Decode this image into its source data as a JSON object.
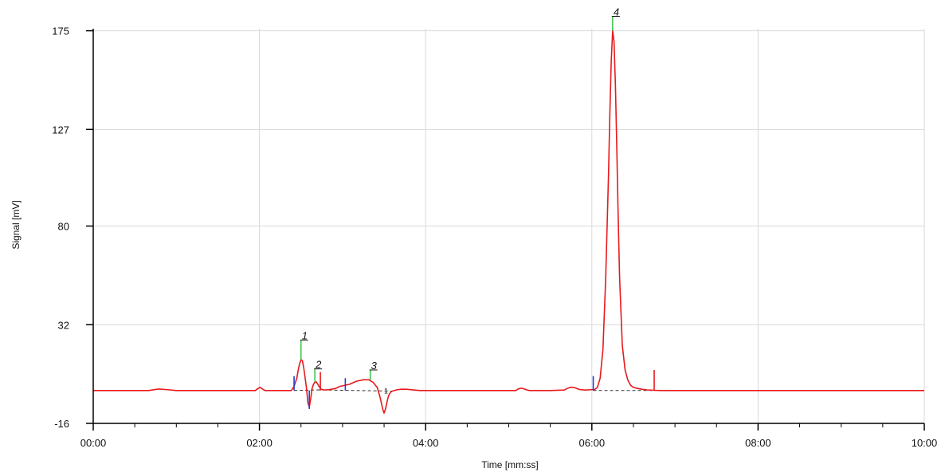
{
  "chart_data": {
    "type": "line",
    "title": "",
    "xlabel": "Time [mm:ss]",
    "ylabel": "Signal [mV]",
    "xlim": [
      0,
      600
    ],
    "ylim": [
      -16,
      176
    ],
    "grid": true,
    "x_ticks": [
      {
        "value": 0,
        "label": "00:00"
      },
      {
        "value": 120,
        "label": "02:00"
      },
      {
        "value": 240,
        "label": "04:00"
      },
      {
        "value": 360,
        "label": "06:00"
      },
      {
        "value": 480,
        "label": "08:00"
      },
      {
        "value": 600,
        "label": "10:00"
      }
    ],
    "y_ticks": [
      {
        "value": -16,
        "label": "-16"
      },
      {
        "value": 32,
        "label": "32"
      },
      {
        "value": 80,
        "label": "80"
      },
      {
        "value": 127,
        "label": "127"
      },
      {
        "value": 175,
        "label": "175"
      }
    ],
    "series": [
      {
        "color": "#e8191c",
        "x": [
          0,
          40,
          47,
          52,
          60,
          117,
          119,
          120.5,
          122,
          124,
          143,
          145,
          147,
          148,
          149,
          150,
          151,
          152,
          153,
          154,
          155,
          156,
          157,
          158,
          159,
          160,
          161,
          162,
          163,
          164,
          165,
          166,
          168,
          170,
          172,
          175,
          178,
          185,
          190,
          195,
          199,
          202,
          205,
          207,
          208,
          209,
          210,
          211,
          212,
          213,
          214,
          215,
          216,
          217,
          219,
          222,
          226,
          232,
          236,
          240,
          245,
          260,
          290,
          305,
          307,
          309,
          311,
          313,
          315,
          330,
          340,
          343,
          345,
          348,
          351,
          355,
          362,
          364,
          366,
          368,
          370,
          372,
          373,
          374,
          375,
          376,
          377,
          378,
          379,
          380,
          382,
          384,
          386,
          388,
          390,
          393,
          396,
          400,
          405,
          410,
          420,
          440,
          470,
          500,
          540,
          600
        ],
        "y": [
          0,
          0,
          0.7,
          0.5,
          0,
          0,
          1,
          1.5,
          0.8,
          0,
          0,
          2,
          6,
          10,
          13,
          15,
          14.5,
          11,
          6,
          1,
          -6,
          -8,
          -4,
          1,
          3,
          4,
          4.2,
          3.2,
          2,
          1,
          0.5,
          0.3,
          0.3,
          0.4,
          0.6,
          1,
          2,
          3,
          4.5,
          5.2,
          5.2,
          4,
          1.5,
          -3,
          -6,
          -9,
          -11,
          -9,
          -6,
          -3,
          -1.5,
          -0.7,
          -0.3,
          -0.1,
          0.3,
          0.6,
          0.6,
          0.2,
          0,
          0,
          0,
          0,
          0,
          0,
          0.8,
          1.1,
          0.8,
          0.3,
          0,
          0,
          0.2,
          1.2,
          1.6,
          1.3,
          0.5,
          0.2,
          0.5,
          1.5,
          6,
          20,
          55,
          105,
          135,
          160,
          175,
          170,
          148,
          118,
          85,
          55,
          22,
          10,
          5,
          2.5,
          1.5,
          1,
          0.6,
          0.3,
          0.1,
          0,
          0,
          0,
          0,
          0,
          0,
          0
        ]
      }
    ],
    "baselines": [
      {
        "x0": 145,
        "x1": 164,
        "y0": 0,
        "y1": 0.3,
        "color": "#333333"
      },
      {
        "x0": 162,
        "x1": 217,
        "y0": 0.3,
        "y1": -0.3,
        "color": "#333333"
      },
      {
        "x0": 361,
        "x1": 406,
        "y0": 0,
        "y1": 0,
        "color": "#333333"
      }
    ],
    "markers": [
      {
        "x": 145,
        "y0": 0,
        "y1": 7,
        "color": "#1f3fd6"
      },
      {
        "x": 156,
        "y0": -9,
        "y1": 0,
        "color": "#1f3fd6"
      },
      {
        "x": 164,
        "y0": 0,
        "y1": 9,
        "color": "#e8191c"
      },
      {
        "x": 182,
        "y0": 0,
        "y1": 6,
        "color": "#1f3fd6"
      },
      {
        "x": 361,
        "y0": 0,
        "y1": 7,
        "color": "#1f3fd6"
      },
      {
        "x": 405,
        "y0": 0,
        "y1": 10,
        "color": "#e8191c"
      }
    ],
    "peaks": [
      {
        "label": "1",
        "x": 150,
        "apex": 15,
        "top": 24.5
      },
      {
        "label": "2",
        "x": 160,
        "apex": 4.2,
        "top": 10.5
      },
      {
        "label": "3",
        "x": 200,
        "apex": 5.2,
        "top": 10
      },
      {
        "label": "4",
        "x": 375,
        "apex": 175,
        "top": 182
      }
    ],
    "baseline_end_label": "1"
  }
}
